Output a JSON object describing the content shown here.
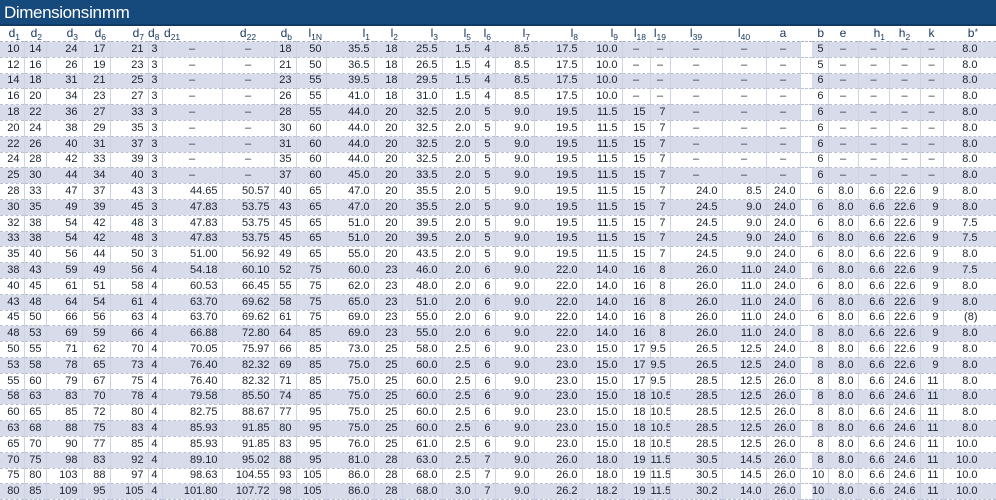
{
  "title": "Dimensions in mm",
  "table": {
    "columns": [
      {
        "key": "d1",
        "base": "d",
        "sub": "1"
      },
      {
        "key": "d2",
        "base": "d",
        "sub": "2"
      },
      {
        "key": "d3",
        "base": "d",
        "sub": "3"
      },
      {
        "key": "d6",
        "base": "d",
        "sub": "6"
      },
      {
        "key": "d7",
        "base": "d",
        "sub": "7"
      },
      {
        "key": "d8",
        "base": "d",
        "sub": "8"
      },
      {
        "key": "d21",
        "base": "d",
        "sub": "21"
      },
      {
        "key": "d22",
        "base": "d",
        "sub": "22"
      },
      {
        "key": "db",
        "base": "d",
        "sub": "b"
      },
      {
        "key": "l1N",
        "base": "l",
        "sub": "1N"
      },
      {
        "key": "l1",
        "base": "l",
        "sub": "1"
      },
      {
        "key": "l2",
        "base": "l",
        "sub": "2"
      },
      {
        "key": "l3",
        "base": "l",
        "sub": "3"
      },
      {
        "key": "l5",
        "base": "l",
        "sub": "5"
      },
      {
        "key": "l6",
        "base": "l",
        "sub": "6"
      },
      {
        "key": "l7",
        "base": "l",
        "sub": "7"
      },
      {
        "key": "l8",
        "base": "l",
        "sub": "8"
      },
      {
        "key": "l9",
        "base": "l",
        "sub": "9"
      },
      {
        "key": "l18",
        "base": "l",
        "sub": "18"
      },
      {
        "key": "l19",
        "base": "l",
        "sub": "19"
      },
      {
        "key": "l39",
        "base": "l",
        "sub": "39"
      },
      {
        "key": "l40",
        "base": "l",
        "sub": "40"
      },
      {
        "key": "a",
        "base": "a"
      },
      {
        "key": "b",
        "base": "b"
      },
      {
        "key": "e",
        "base": "e"
      },
      {
        "key": "h1",
        "base": "h",
        "sub": "1"
      },
      {
        "key": "h2",
        "base": "h",
        "sub": "2"
      },
      {
        "key": "k",
        "base": "k"
      },
      {
        "key": "bstar",
        "base": "b",
        "sup": "*"
      }
    ],
    "rows": [
      [
        "10",
        "14",
        "24",
        "17",
        "21",
        "3",
        "–",
        "–",
        "18",
        "50",
        "35.5",
        "18",
        "25.5",
        "1.5",
        "4",
        "8.5",
        "17.5",
        "10.0",
        "–",
        "–",
        "–",
        "–",
        "–",
        "5",
        "–",
        "–",
        "–",
        "–",
        "8.0"
      ],
      [
        "12",
        "16",
        "26",
        "19",
        "23",
        "3",
        "–",
        "–",
        "21",
        "50",
        "36.5",
        "18",
        "26.5",
        "1.5",
        "4",
        "8.5",
        "17.5",
        "10.0",
        "–",
        "–",
        "–",
        "–",
        "–",
        "5",
        "–",
        "–",
        "–",
        "–",
        "8.0"
      ],
      [
        "14",
        "18",
        "31",
        "21",
        "25",
        "3",
        "–",
        "–",
        "23",
        "55",
        "39.5",
        "18",
        "29.5",
        "1.5",
        "4",
        "8.5",
        "17.5",
        "10.0",
        "–",
        "–",
        "–",
        "–",
        "–",
        "6",
        "–",
        "–",
        "–",
        "–",
        "8.0"
      ],
      [
        "16",
        "20",
        "34",
        "23",
        "27",
        "3",
        "–",
        "–",
        "26",
        "55",
        "41.0",
        "18",
        "31.0",
        "1.5",
        "4",
        "8.5",
        "17.5",
        "10.0",
        "–",
        "–",
        "–",
        "–",
        "–",
        "6",
        "–",
        "–",
        "–",
        "–",
        "8.0"
      ],
      [
        "18",
        "22",
        "36",
        "27",
        "33",
        "3",
        "–",
        "–",
        "28",
        "55",
        "44.0",
        "20",
        "32.5",
        "2.0",
        "5",
        "9.0",
        "19.5",
        "11.5",
        "15",
        "7",
        "–",
        "–",
        "–",
        "6",
        "–",
        "–",
        "–",
        "–",
        "8.0"
      ],
      [
        "20",
        "24",
        "38",
        "29",
        "35",
        "3",
        "–",
        "–",
        "30",
        "60",
        "44.0",
        "20",
        "32.5",
        "2.0",
        "5",
        "9.0",
        "19.5",
        "11.5",
        "15",
        "7",
        "–",
        "–",
        "–",
        "6",
        "–",
        "–",
        "–",
        "–",
        "8.0"
      ],
      [
        "22",
        "26",
        "40",
        "31",
        "37",
        "3",
        "–",
        "–",
        "31",
        "60",
        "44.0",
        "20",
        "32.5",
        "2.0",
        "5",
        "9.0",
        "19.5",
        "11.5",
        "15",
        "7",
        "–",
        "–",
        "–",
        "6",
        "–",
        "–",
        "–",
        "–",
        "8.0"
      ],
      [
        "24",
        "28",
        "42",
        "33",
        "39",
        "3",
        "–",
        "–",
        "35",
        "60",
        "44.0",
        "20",
        "32.5",
        "2.0",
        "5",
        "9.0",
        "19.5",
        "11.5",
        "15",
        "7",
        "–",
        "–",
        "–",
        "6",
        "–",
        "–",
        "–",
        "–",
        "8.0"
      ],
      [
        "25",
        "30",
        "44",
        "34",
        "40",
        "3",
        "–",
        "–",
        "37",
        "60",
        "45.0",
        "20",
        "33.5",
        "2.0",
        "5",
        "9.0",
        "19.5",
        "11.5",
        "15",
        "7",
        "–",
        "–",
        "–",
        "6",
        "–",
        "–",
        "–",
        "–",
        "8.0"
      ],
      [
        "28",
        "33",
        "47",
        "37",
        "43",
        "3",
        "44.65",
        "50.57",
        "40",
        "65",
        "47.0",
        "20",
        "35.5",
        "2.0",
        "5",
        "9.0",
        "19.5",
        "11.5",
        "15",
        "7",
        "24.0",
        "8.5",
        "24.0",
        "6",
        "8.0",
        "6.6",
        "22.6",
        "9",
        "8.0"
      ],
      [
        "30",
        "35",
        "49",
        "39",
        "45",
        "3",
        "47.83",
        "53.75",
        "43",
        "65",
        "47.0",
        "20",
        "35.5",
        "2.0",
        "5",
        "9.0",
        "19.5",
        "11.5",
        "15",
        "7",
        "24.5",
        "9.0",
        "24.0",
        "6",
        "8.0",
        "6.6",
        "22.6",
        "9",
        "8.0"
      ],
      [
        "32",
        "38",
        "54",
        "42",
        "48",
        "3",
        "47.83",
        "53.75",
        "45",
        "65",
        "51.0",
        "20",
        "39.5",
        "2.0",
        "5",
        "9.0",
        "19.5",
        "11.5",
        "15",
        "7",
        "24.5",
        "9.0",
        "24.0",
        "6",
        "8.0",
        "6.6",
        "22.6",
        "9",
        "7.5"
      ],
      [
        "33",
        "38",
        "54",
        "42",
        "48",
        "3",
        "47.83",
        "53.75",
        "45",
        "65",
        "51.0",
        "20",
        "39.5",
        "2.0",
        "5",
        "9.0",
        "19.5",
        "11.5",
        "15",
        "7",
        "24.5",
        "9.0",
        "24.0",
        "6",
        "8.0",
        "6.6",
        "22.6",
        "9",
        "7.5"
      ],
      [
        "35",
        "40",
        "56",
        "44",
        "50",
        "3",
        "51.00",
        "56.92",
        "49",
        "65",
        "55.0",
        "20",
        "43.5",
        "2.0",
        "5",
        "9.0",
        "19.5",
        "11.5",
        "15",
        "7",
        "24.5",
        "9.0",
        "24.0",
        "6",
        "8.0",
        "6.6",
        "22.6",
        "9",
        "8.0"
      ],
      [
        "38",
        "43",
        "59",
        "49",
        "56",
        "4",
        "54.18",
        "60.10",
        "52",
        "75",
        "60.0",
        "23",
        "46.0",
        "2.0",
        "6",
        "9.0",
        "22.0",
        "14.0",
        "16",
        "8",
        "26.0",
        "11.0",
        "24.0",
        "6",
        "8.0",
        "6.6",
        "22.6",
        "9",
        "7.5"
      ],
      [
        "40",
        "45",
        "61",
        "51",
        "58",
        "4",
        "60.53",
        "66.45",
        "55",
        "75",
        "62.0",
        "23",
        "48.0",
        "2.0",
        "6",
        "9.0",
        "22.0",
        "14.0",
        "16",
        "8",
        "26.0",
        "11.0",
        "24.0",
        "6",
        "8.0",
        "6.6",
        "22.6",
        "9",
        "8.0"
      ],
      [
        "43",
        "48",
        "64",
        "54",
        "61",
        "4",
        "63.70",
        "69.62",
        "58",
        "75",
        "65.0",
        "23",
        "51.0",
        "2.0",
        "6",
        "9.0",
        "22.0",
        "14.0",
        "16",
        "8",
        "26.0",
        "11.0",
        "24.0",
        "6",
        "8.0",
        "6.6",
        "22.6",
        "9",
        "8.0"
      ],
      [
        "45",
        "50",
        "66",
        "56",
        "63",
        "4",
        "63.70",
        "69.62",
        "61",
        "75",
        "69.0",
        "23",
        "55.0",
        "2.0",
        "6",
        "9.0",
        "22.0",
        "14.0",
        "16",
        "8",
        "26.0",
        "11.0",
        "24.0",
        "6",
        "8.0",
        "6.6",
        "22.6",
        "9",
        "(8)"
      ],
      [
        "48",
        "53",
        "69",
        "59",
        "66",
        "4",
        "66.88",
        "72.80",
        "64",
        "85",
        "69.0",
        "23",
        "55.0",
        "2.0",
        "6",
        "9.0",
        "22.0",
        "14.0",
        "16",
        "8",
        "26.0",
        "11.0",
        "24.0",
        "8",
        "8.0",
        "6.6",
        "22.6",
        "9",
        "8.0"
      ],
      [
        "50",
        "55",
        "71",
        "62",
        "70",
        "4",
        "70.05",
        "75.97",
        "66",
        "85",
        "73.0",
        "25",
        "58.0",
        "2.5",
        "6",
        "9.0",
        "23.0",
        "15.0",
        "17",
        "9.5",
        "26.5",
        "12.5",
        "24.0",
        "8",
        "8.0",
        "6.6",
        "22.6",
        "9",
        "8.0"
      ],
      [
        "53",
        "58",
        "78",
        "65",
        "73",
        "4",
        "76.40",
        "82.32",
        "69",
        "85",
        "75.0",
        "25",
        "60.0",
        "2.5",
        "6",
        "9.0",
        "23.0",
        "15.0",
        "17",
        "9.5",
        "26.5",
        "12.5",
        "24.0",
        "8",
        "8.0",
        "6.6",
        "22.6",
        "9",
        "8.0"
      ],
      [
        "55",
        "60",
        "79",
        "67",
        "75",
        "4",
        "76.40",
        "82.32",
        "71",
        "85",
        "75.0",
        "25",
        "60.0",
        "2.5",
        "6",
        "9.0",
        "23.0",
        "15.0",
        "17",
        "9.5",
        "28.5",
        "12.5",
        "26.0",
        "8",
        "8.0",
        "6.6",
        "24.6",
        "11",
        "8.0"
      ],
      [
        "58",
        "63",
        "83",
        "70",
        "78",
        "4",
        "79.58",
        "85.50",
        "74",
        "85",
        "75.0",
        "25",
        "60.0",
        "2.5",
        "6",
        "9.0",
        "23.0",
        "15.0",
        "18",
        "10.5",
        "28.5",
        "12.5",
        "26.0",
        "8",
        "8.0",
        "6.6",
        "24.6",
        "11",
        "8.0"
      ],
      [
        "60",
        "65",
        "85",
        "72",
        "80",
        "4",
        "82.75",
        "88.67",
        "77",
        "95",
        "75.0",
        "25",
        "60.0",
        "2.5",
        "6",
        "9.0",
        "23.0",
        "15.0",
        "18",
        "10.5",
        "28.5",
        "12.5",
        "26.0",
        "8",
        "8.0",
        "6.6",
        "24.6",
        "11",
        "8.0"
      ],
      [
        "63",
        "68",
        "88",
        "75",
        "83",
        "4",
        "85.93",
        "91.85",
        "80",
        "95",
        "75.0",
        "25",
        "60.0",
        "2.5",
        "6",
        "9.0",
        "23.0",
        "15.0",
        "18",
        "10.5",
        "28.5",
        "12.5",
        "26.0",
        "8",
        "8.0",
        "6.6",
        "24.6",
        "11",
        "8.0"
      ],
      [
        "65",
        "70",
        "90",
        "77",
        "85",
        "4",
        "85.93",
        "91.85",
        "83",
        "95",
        "76.0",
        "25",
        "61.0",
        "2.5",
        "6",
        "9.0",
        "23.0",
        "15.0",
        "18",
        "10.5",
        "28.5",
        "12.5",
        "26.0",
        "8",
        "8.0",
        "6.6",
        "24.6",
        "11",
        "10.0"
      ],
      [
        "70",
        "75",
        "98",
        "83",
        "92",
        "4",
        "89.10",
        "95.02",
        "88",
        "95",
        "81.0",
        "28",
        "63.0",
        "2.5",
        "7",
        "9.0",
        "26.0",
        "18.0",
        "19",
        "11.5",
        "30.5",
        "14.5",
        "26.0",
        "8",
        "8.0",
        "6.6",
        "24.6",
        "11",
        "10.0"
      ],
      [
        "75",
        "80",
        "103",
        "88",
        "97",
        "4",
        "98.63",
        "104.55",
        "93",
        "105",
        "86.0",
        "28",
        "68.0",
        "2.5",
        "7",
        "9.0",
        "26.0",
        "18.0",
        "19",
        "11.5",
        "30.5",
        "14.5",
        "26.0",
        "10",
        "8.0",
        "6.6",
        "24.6",
        "11",
        "10.0"
      ],
      [
        "80",
        "85",
        "109",
        "95",
        "105",
        "4",
        "101.80",
        "107.72",
        "98",
        "105",
        "86.0",
        "28",
        "68.0",
        "3.0",
        "7",
        "9.0",
        "26.2",
        "18.2",
        "19",
        "11.5",
        "30.2",
        "14.0",
        "26.0",
        "10",
        "8.0",
        "6.6",
        "24.6",
        "11",
        "10.0"
      ]
    ]
  }
}
